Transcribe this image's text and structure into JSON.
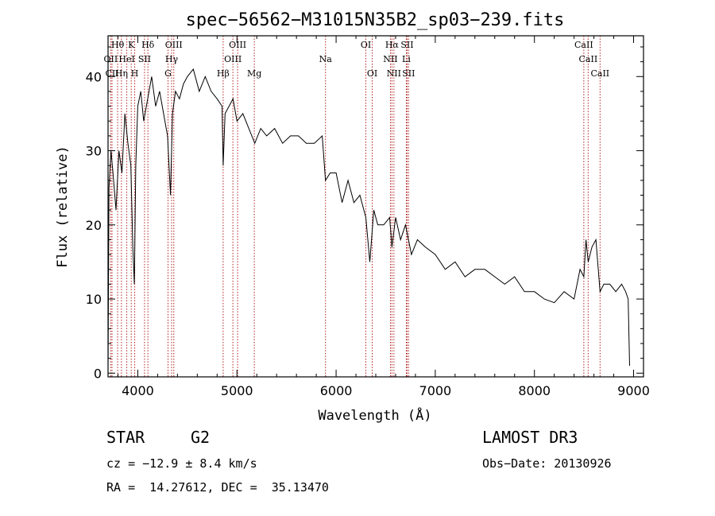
{
  "chart_data": {
    "type": "line",
    "title": "spec−56562−M31015N35B2_sp03−239.fits",
    "xlabel": "Wavelength (Å)",
    "ylabel": "Flux (relative)",
    "xlim": [
      3700,
      9100
    ],
    "ylim": [
      -0.5,
      45.5
    ],
    "x_ticks": [
      4000,
      5000,
      6000,
      7000,
      8000,
      9000
    ],
    "y_ticks": [
      0,
      10,
      20,
      30,
      40
    ],
    "series": [
      {
        "name": "spectrum",
        "x": [
          3700,
          3710,
          3730,
          3750,
          3780,
          3810,
          3840,
          3870,
          3900,
          3930,
          3950,
          3965,
          3980,
          4000,
          4030,
          4060,
          4100,
          4140,
          4180,
          4220,
          4260,
          4300,
          4330,
          4350,
          4380,
          4420,
          4460,
          4500,
          4560,
          4620,
          4680,
          4740,
          4800,
          4850,
          4861,
          4880,
          4920,
          4960,
          5000,
          5060,
          5120,
          5180,
          5240,
          5300,
          5380,
          5460,
          5540,
          5620,
          5700,
          5780,
          5860,
          5893,
          5940,
          6000,
          6060,
          6120,
          6180,
          6240,
          6300,
          6340,
          6380,
          6420,
          6480,
          6540,
          6563,
          6600,
          6650,
          6700,
          6760,
          6820,
          6900,
          7000,
          7100,
          7200,
          7300,
          7400,
          7500,
          7600,
          7700,
          7800,
          7900,
          8000,
          8100,
          8200,
          8300,
          8400,
          8460,
          8498,
          8520,
          8542,
          8580,
          8620,
          8662,
          8700,
          8760,
          8820,
          8880,
          8920,
          8945,
          8955,
          8960
        ],
        "values": [
          1.0,
          25.0,
          30.0,
          27.0,
          22.0,
          30.0,
          27.0,
          35.0,
          31.0,
          28.0,
          17.0,
          12.0,
          28.0,
          36.0,
          38.0,
          34.0,
          37.0,
          40.0,
          36.0,
          38.0,
          35.0,
          32.0,
          24.0,
          35.0,
          38.0,
          37.0,
          39.0,
          40.0,
          41.0,
          38.0,
          40.0,
          38.0,
          37.0,
          36.0,
          28.0,
          35.0,
          36.0,
          37.0,
          34.0,
          35.0,
          33.0,
          31.0,
          33.0,
          32.0,
          33.0,
          31.0,
          32.0,
          32.0,
          31.0,
          31.0,
          32.0,
          26.0,
          27.0,
          27.0,
          23.0,
          26.0,
          23.0,
          24.0,
          21.0,
          15.0,
          22.0,
          20.0,
          20.0,
          21.0,
          17.0,
          21.0,
          18.0,
          20.0,
          16.0,
          18.0,
          17.0,
          16.0,
          14.0,
          15.0,
          13.0,
          14.0,
          14.0,
          13.0,
          12.0,
          13.0,
          11.0,
          11.0,
          10.0,
          9.5,
          11.0,
          10.0,
          14.0,
          13.0,
          18.0,
          15.0,
          17.0,
          18.0,
          11.0,
          12.0,
          12.0,
          11.0,
          12.0,
          11.0,
          10.0,
          4.0,
          1.0
        ]
      }
    ],
    "spectral_lines": [
      {
        "label": "Hθ",
        "x": 3797,
        "row": 0
      },
      {
        "label": "OII",
        "x": 3727,
        "row": 1
      },
      {
        "label": "CII",
        "x": 3740,
        "row": 2
      },
      {
        "label": "Hη",
        "x": 3835,
        "row": 2
      },
      {
        "label": "HeI",
        "x": 3889,
        "row": 1
      },
      {
        "label": "K",
        "x": 3934,
        "row": 0
      },
      {
        "label": "SII",
        "x": 4068,
        "row": 1
      },
      {
        "label": "H",
        "x": 3969,
        "row": 2
      },
      {
        "label": "Hδ",
        "x": 4102,
        "row": 0
      },
      {
        "label": "OIII",
        "x": 4363,
        "row": 0
      },
      {
        "label": "Hγ",
        "x": 4341,
        "row": 1
      },
      {
        "label": "G",
        "x": 4305,
        "row": 2
      },
      {
        "label": "OIII",
        "x": 5007,
        "row": 0
      },
      {
        "label": "OIII",
        "x": 4959,
        "row": 1
      },
      {
        "label": "Hβ",
        "x": 4861,
        "row": 2
      },
      {
        "label": "Mg",
        "x": 5175,
        "row": 2
      },
      {
        "label": "Na",
        "x": 5893,
        "row": 1
      },
      {
        "label": "OI",
        "x": 6300,
        "row": 0
      },
      {
        "label": "OI",
        "x": 6364,
        "row": 2
      },
      {
        "label": "Hα",
        "x": 6563,
        "row": 0
      },
      {
        "label": "SII",
        "x": 6716,
        "row": 0
      },
      {
        "label": "NII",
        "x": 6548,
        "row": 1
      },
      {
        "label": "Li",
        "x": 6708,
        "row": 1
      },
      {
        "label": "NII",
        "x": 6583,
        "row": 2
      },
      {
        "label": "SII",
        "x": 6731,
        "row": 2
      },
      {
        "label": "CaII",
        "x": 8498,
        "row": 0
      },
      {
        "label": "CaII",
        "x": 8542,
        "row": 1
      },
      {
        "label": "CaII",
        "x": 8662,
        "row": 2
      }
    ]
  },
  "info": {
    "object_class": "STAR",
    "subclass": "G2",
    "survey": "LAMOST DR3",
    "redshift": "cz = −12.9 ± 8.4 km/s",
    "obs_date": "Obs−Date: 20130926",
    "coords": "RA =  14.27612, DEC =  35.13470"
  },
  "colors": {
    "line_marker": "#b22222",
    "spectrum": "#000000"
  }
}
